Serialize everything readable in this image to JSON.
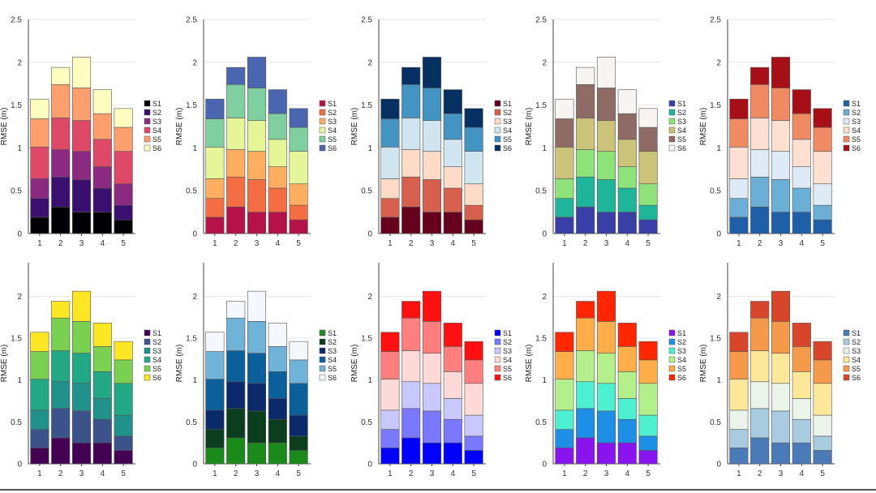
{
  "chart_data": {
    "type": "bar",
    "stacked": true,
    "ylabel": "RMSE (m)",
    "categories": [
      "1",
      "2",
      "3",
      "4",
      "5"
    ],
    "series_names": [
      "S1",
      "S2",
      "S3",
      "S4",
      "S5",
      "S6"
    ],
    "series_values": [
      [
        0.19,
        0.31,
        0.25,
        0.25,
        0.16
      ],
      [
        0.22,
        0.35,
        0.38,
        0.28,
        0.17
      ],
      [
        0.23,
        0.32,
        0.33,
        0.25,
        0.25
      ],
      [
        0.37,
        0.37,
        0.36,
        0.32,
        0.38
      ],
      [
        0.33,
        0.39,
        0.38,
        0.3,
        0.28
      ],
      [
        0.23,
        0.2,
        0.36,
        0.28,
        0.22
      ]
    ],
    "grid": true,
    "legend_placement": "right",
    "panels": [
      {
        "ylim": [
          0,
          2.5
        ],
        "yticks": [
          "0",
          "0.5",
          "1",
          "1.5",
          "2",
          "2.5"
        ],
        "colors": [
          "#000004",
          "#3b0f70",
          "#8c2981",
          "#de4968",
          "#fe9f6d",
          "#fcfdbf"
        ]
      },
      {
        "ylim": [
          0,
          2.5
        ],
        "yticks": [
          "0",
          "0.5",
          "1",
          "1.5",
          "2",
          "2.5"
        ],
        "colors": [
          "#b5124a",
          "#f46d43",
          "#fdae61",
          "#e6f598",
          "#80cfa0",
          "#4a66b0"
        ]
      },
      {
        "ylim": [
          0,
          2.5
        ],
        "yticks": [
          "0",
          "0.5",
          "1",
          "1.5",
          "2",
          "2.5"
        ],
        "colors": [
          "#67001f",
          "#d6604d",
          "#fddbc7",
          "#d1e5f0",
          "#4393c3",
          "#053061"
        ]
      },
      {
        "ylim": [
          0,
          2.5
        ],
        "yticks": [
          "0",
          "0.5",
          "1",
          "1.5",
          "2",
          "2.5"
        ],
        "colors": [
          "#3a3fa8",
          "#1fb59b",
          "#8ee27a",
          "#ccc37a",
          "#8f6b66",
          "#f7f4f2"
        ]
      },
      {
        "ylim": [
          0,
          2.5
        ],
        "yticks": [
          "0",
          "0.5",
          "1",
          "1.5",
          "2",
          "2.5"
        ],
        "colors": [
          "#1f5fa8",
          "#6baed6",
          "#deebf7",
          "#fde0d2",
          "#ef8a62",
          "#a50f15"
        ]
      },
      {
        "ylim": [
          0,
          2.4
        ],
        "yticks": [
          "0",
          "0.5",
          "1",
          "1.5",
          "2"
        ],
        "colors": [
          "#440154",
          "#3b528b",
          "#21918c",
          "#22a884",
          "#7ad151",
          "#fde725"
        ]
      },
      {
        "ylim": [
          0,
          2.4
        ],
        "yticks": [
          "0",
          "0.5",
          "1",
          "1.5",
          "2"
        ],
        "colors": [
          "#1a8a1a",
          "#0b3d1f",
          "#0b2a6b",
          "#0b5f9a",
          "#6fb3d8",
          "#f4f8fc"
        ]
      },
      {
        "ylim": [
          0,
          2.4
        ],
        "yticks": [
          "0",
          "0.5",
          "1",
          "1.5",
          "2"
        ],
        "colors": [
          "#0000ff",
          "#7a78ff",
          "#c8c8ff",
          "#ffd8d8",
          "#ff7f7f",
          "#ff1010"
        ]
      },
      {
        "ylim": [
          0,
          2.4
        ],
        "yticks": [
          "0",
          "0.5",
          "1",
          "1.5",
          "2"
        ],
        "colors": [
          "#8a14f0",
          "#1e8fe6",
          "#4ef0d2",
          "#b3ef8a",
          "#ffae4a",
          "#ff2600"
        ]
      },
      {
        "ylim": [
          0,
          2.4
        ],
        "yticks": [
          "0",
          "0.5",
          "1",
          "1.5",
          "2"
        ],
        "colors": [
          "#4a7ab8",
          "#a9cbe0",
          "#eaf4e8",
          "#fde89a",
          "#f59a4a",
          "#d7452a"
        ]
      }
    ]
  }
}
